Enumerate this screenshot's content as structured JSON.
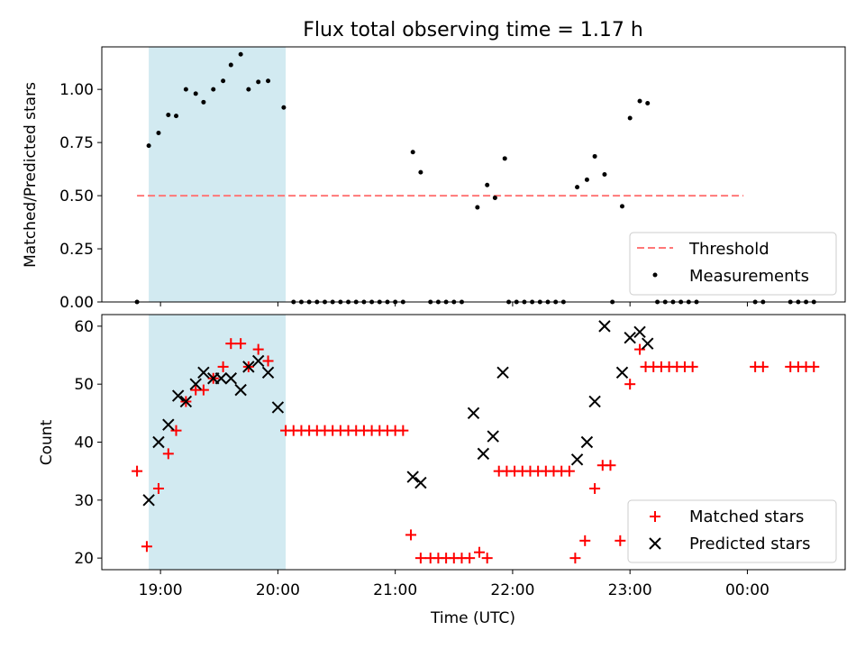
{
  "chart_data": [
    {
      "type": "scatter",
      "title": "Flux total observing time = 1.17 h",
      "xlabel": "",
      "ylabel": "Matched/Predicted stars",
      "ylim": [
        0,
        1.2
      ],
      "xlim": [
        "18:30",
        "00:50"
      ],
      "y_ticks": [
        "0.00",
        "0.25",
        "0.50",
        "0.75",
        "1.00"
      ],
      "shaded_region": {
        "x_start": "18:54",
        "x_end": "20:04",
        "color": "#add8e6"
      },
      "threshold": {
        "name": "Threshold",
        "value": 0.5,
        "x_start": "18:48",
        "x_end": "23:58",
        "color": "#ff7777",
        "style": "dashed"
      },
      "legend": {
        "position": "lower-right",
        "entries": [
          "Threshold",
          "Measurements"
        ]
      },
      "series": [
        {
          "name": "Measurements",
          "marker": "dot",
          "color": "#000000",
          "points": [
            [
              "18:48",
              0.0
            ],
            [
              "18:54",
              0.735
            ],
            [
              "18:59",
              0.795
            ],
            [
              "19:04",
              0.88
            ],
            [
              "19:08",
              0.875
            ],
            [
              "19:13",
              1.0
            ],
            [
              "19:18",
              0.98
            ],
            [
              "19:22",
              0.94
            ],
            [
              "19:27",
              1.0
            ],
            [
              "19:32",
              1.04
            ],
            [
              "19:36",
              1.115
            ],
            [
              "19:41",
              1.165
            ],
            [
              "19:45",
              1.0
            ],
            [
              "19:50",
              1.035
            ],
            [
              "19:55",
              1.04
            ],
            [
              "20:03",
              0.915
            ],
            [
              "20:08",
              0.0
            ],
            [
              "20:12",
              0.0
            ],
            [
              "20:16",
              0.0
            ],
            [
              "20:20",
              0.0
            ],
            [
              "20:24",
              0.0
            ],
            [
              "20:28",
              0.0
            ],
            [
              "20:32",
              0.0
            ],
            [
              "20:36",
              0.0
            ],
            [
              "20:40",
              0.0
            ],
            [
              "20:44",
              0.0
            ],
            [
              "20:48",
              0.0
            ],
            [
              "20:52",
              0.0
            ],
            [
              "20:56",
              0.0
            ],
            [
              "21:00",
              0.0
            ],
            [
              "21:04",
              0.0
            ],
            [
              "21:09",
              0.705
            ],
            [
              "21:13",
              0.61
            ],
            [
              "21:18",
              0.0
            ],
            [
              "21:22",
              0.0
            ],
            [
              "21:26",
              0.0
            ],
            [
              "21:30",
              0.0
            ],
            [
              "21:34",
              0.0
            ],
            [
              "21:42",
              0.445
            ],
            [
              "21:47",
              0.55
            ],
            [
              "21:51",
              0.49
            ],
            [
              "21:56",
              0.675
            ],
            [
              "21:58",
              0.0
            ],
            [
              "22:02",
              0.0
            ],
            [
              "22:06",
              0.0
            ],
            [
              "22:10",
              0.0
            ],
            [
              "22:14",
              0.0
            ],
            [
              "22:18",
              0.0
            ],
            [
              "22:22",
              0.0
            ],
            [
              "22:26",
              0.0
            ],
            [
              "22:33",
              0.54
            ],
            [
              "22:38",
              0.575
            ],
            [
              "22:42",
              0.685
            ],
            [
              "22:47",
              0.6
            ],
            [
              "22:51",
              0.0
            ],
            [
              "22:56",
              0.45
            ],
            [
              "23:00",
              0.865
            ],
            [
              "23:05",
              0.945
            ],
            [
              "23:09",
              0.935
            ],
            [
              "23:14",
              0.0
            ],
            [
              "23:18",
              0.0
            ],
            [
              "23:22",
              0.0
            ],
            [
              "23:26",
              0.0
            ],
            [
              "23:30",
              0.0
            ],
            [
              "23:34",
              0.0
            ],
            [
              "00:04",
              0.0
            ],
            [
              "00:08",
              0.0
            ],
            [
              "00:22",
              0.0
            ],
            [
              "00:26",
              0.0
            ],
            [
              "00:30",
              0.0
            ],
            [
              "00:34",
              0.0
            ]
          ]
        }
      ]
    },
    {
      "type": "scatter",
      "title": "",
      "xlabel": "Time (UTC)",
      "ylabel": "Count",
      "ylim": [
        18,
        62
      ],
      "xlim": [
        "18:30",
        "00:50"
      ],
      "x_ticks": [
        "19:00",
        "20:00",
        "21:00",
        "22:00",
        "23:00",
        "00:00"
      ],
      "y_ticks": [
        "20",
        "30",
        "40",
        "50",
        "60"
      ],
      "shaded_region": {
        "x_start": "18:54",
        "x_end": "20:04",
        "color": "#add8e6"
      },
      "legend": {
        "position": "lower-right",
        "entries": [
          "Matched stars",
          "Predicted stars"
        ]
      },
      "series": [
        {
          "name": "Matched stars",
          "marker": "plus",
          "color": "#ff0000",
          "points": [
            [
              "18:48",
              35
            ],
            [
              "18:53",
              22
            ],
            [
              "18:59",
              32
            ],
            [
              "19:04",
              38
            ],
            [
              "19:08",
              42
            ],
            [
              "19:13",
              47
            ],
            [
              "19:18",
              49
            ],
            [
              "19:22",
              49
            ],
            [
              "19:27",
              51
            ],
            [
              "19:32",
              53
            ],
            [
              "19:36",
              57
            ],
            [
              "19:41",
              57
            ],
            [
              "19:45",
              53
            ],
            [
              "19:50",
              56
            ],
            [
              "19:55",
              54
            ],
            [
              "20:04",
              42
            ],
            [
              "20:08",
              42
            ],
            [
              "20:12",
              42
            ],
            [
              "20:16",
              42
            ],
            [
              "20:20",
              42
            ],
            [
              "20:24",
              42
            ],
            [
              "20:28",
              42
            ],
            [
              "20:32",
              42
            ],
            [
              "20:36",
              42
            ],
            [
              "20:40",
              42
            ],
            [
              "20:44",
              42
            ],
            [
              "20:48",
              42
            ],
            [
              "20:52",
              42
            ],
            [
              "20:56",
              42
            ],
            [
              "21:00",
              42
            ],
            [
              "21:04",
              42
            ],
            [
              "21:08",
              24
            ],
            [
              "21:13",
              20
            ],
            [
              "21:18",
              20
            ],
            [
              "21:22",
              20
            ],
            [
              "21:26",
              20
            ],
            [
              "21:30",
              20
            ],
            [
              "21:34",
              20
            ],
            [
              "21:38",
              20
            ],
            [
              "21:43",
              21
            ],
            [
              "21:47",
              20
            ],
            [
              "21:53",
              35
            ],
            [
              "21:57",
              35
            ],
            [
              "22:01",
              35
            ],
            [
              "22:05",
              35
            ],
            [
              "22:09",
              35
            ],
            [
              "22:13",
              35
            ],
            [
              "22:17",
              35
            ],
            [
              "22:21",
              35
            ],
            [
              "22:25",
              35
            ],
            [
              "22:29",
              35
            ],
            [
              "22:32",
              20
            ],
            [
              "22:37",
              23
            ],
            [
              "22:42",
              32
            ],
            [
              "22:46",
              36
            ],
            [
              "22:50",
              36
            ],
            [
              "22:55",
              23
            ],
            [
              "23:00",
              50
            ],
            [
              "23:05",
              56
            ],
            [
              "23:08",
              53
            ],
            [
              "23:12",
              53
            ],
            [
              "23:16",
              53
            ],
            [
              "23:20",
              53
            ],
            [
              "23:24",
              53
            ],
            [
              "23:28",
              53
            ],
            [
              "23:32",
              53
            ],
            [
              "00:04",
              53
            ],
            [
              "00:08",
              53
            ],
            [
              "00:22",
              53
            ],
            [
              "00:26",
              53
            ],
            [
              "00:30",
              53
            ],
            [
              "00:34",
              53
            ]
          ]
        },
        {
          "name": "Predicted stars",
          "marker": "x",
          "color": "#000000",
          "points": [
            [
              "18:54",
              30
            ],
            [
              "18:59",
              40
            ],
            [
              "19:04",
              43
            ],
            [
              "19:09",
              48
            ],
            [
              "19:13",
              47
            ],
            [
              "19:18",
              50
            ],
            [
              "19:22",
              52
            ],
            [
              "19:27",
              51
            ],
            [
              "19:31",
              51
            ],
            [
              "19:36",
              51
            ],
            [
              "19:41",
              49
            ],
            [
              "19:45",
              53
            ],
            [
              "19:50",
              54
            ],
            [
              "19:55",
              52
            ],
            [
              "20:00",
              46
            ],
            [
              "21:09",
              34
            ],
            [
              "21:13",
              33
            ],
            [
              "21:40",
              45
            ],
            [
              "21:45",
              38
            ],
            [
              "21:50",
              41
            ],
            [
              "21:55",
              52
            ],
            [
              "22:33",
              37
            ],
            [
              "22:38",
              40
            ],
            [
              "22:42",
              47
            ],
            [
              "22:47",
              60
            ],
            [
              "22:56",
              52
            ],
            [
              "23:00",
              58
            ],
            [
              "23:05",
              59
            ],
            [
              "23:09",
              57
            ]
          ]
        }
      ]
    }
  ]
}
